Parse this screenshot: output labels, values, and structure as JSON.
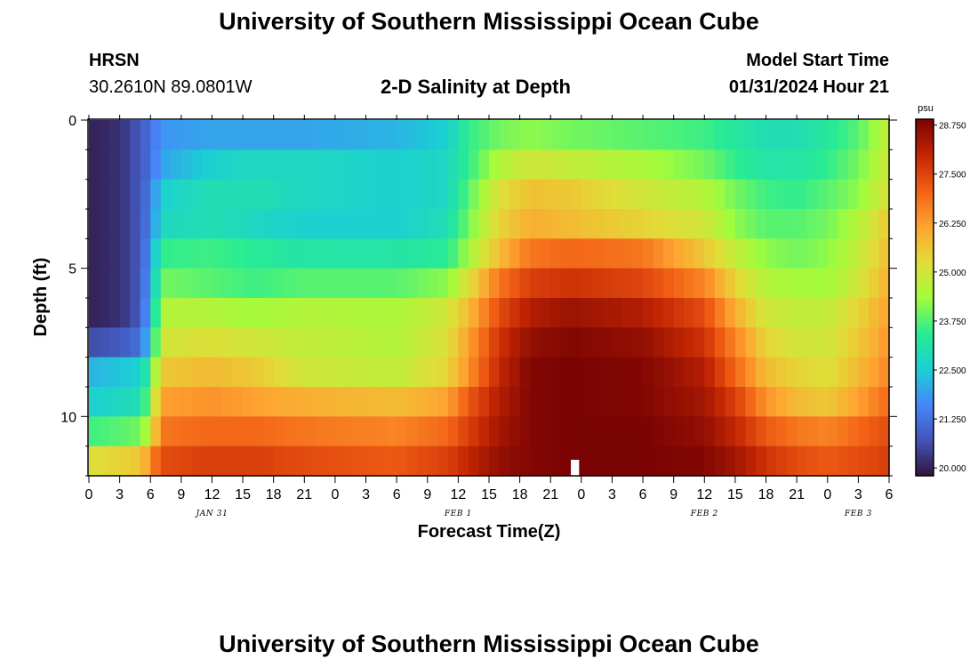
{
  "header": {
    "title": "University of Southern Mississippi Ocean Cube",
    "station": "HRSN",
    "coords": "30.2610N  89.0801W",
    "plot_title": "2-D Salinity at Depth",
    "model_start_label": "Model Start Time",
    "model_start_value": "01/31/2024 Hour 21",
    "footer_title": "University of Southern Mississippi Ocean Cube"
  },
  "chart_data": {
    "type": "heatmap",
    "title": "2-D Salinity at Depth",
    "xlabel": "Forecast Time(Z)",
    "ylabel": "Depth (ft)",
    "x_range_hours": [
      0,
      78
    ],
    "y_range_ft": [
      0,
      12
    ],
    "x_tick_labels": [
      "0",
      "3",
      "6",
      "9",
      "12",
      "15",
      "18",
      "21",
      "0",
      "3",
      "6",
      "9",
      "12",
      "15",
      "18",
      "21",
      "0",
      "3",
      "6",
      "9",
      "12",
      "15",
      "18",
      "21",
      "0",
      "3",
      "6"
    ],
    "x_tick_hours": [
      0,
      3,
      6,
      9,
      12,
      15,
      18,
      21,
      24,
      27,
      30,
      33,
      36,
      39,
      42,
      45,
      48,
      51,
      54,
      57,
      60,
      63,
      66,
      69,
      72,
      75,
      78
    ],
    "date_labels": [
      {
        "label": "JAN 31",
        "hour": 12
      },
      {
        "label": "FEB 1",
        "hour": 36
      },
      {
        "label": "FEB 2",
        "hour": 60
      },
      {
        "label": "FEB 3",
        "hour": 75
      }
    ],
    "y_tick_labels": [
      "0",
      "5",
      "10"
    ],
    "y_tick_values": [
      0,
      5,
      10
    ],
    "depth_levels_ft": [
      0.5,
      1.5,
      2.5,
      3.5,
      4.5,
      5.5,
      6.5,
      7.5,
      8.5,
      9.5,
      10.5,
      11.5
    ],
    "model_start_marker_hour": 47,
    "colorbar": {
      "unit": "psu",
      "min": 19.8,
      "max": 28.9,
      "tick_labels": [
        "28.750",
        "27.500",
        "26.250",
        "25.000",
        "23.750",
        "22.500",
        "21.250",
        "20.000"
      ],
      "tick_values": [
        28.75,
        27.5,
        26.25,
        25.0,
        23.75,
        22.5,
        21.25,
        20.0
      ]
    },
    "salinity_psu_key_times": {
      "hours": [
        0,
        3,
        5,
        6,
        7,
        12,
        16,
        21,
        30,
        35,
        37,
        40,
        43,
        47,
        54,
        60,
        63,
        66,
        69,
        72,
        75,
        78
      ],
      "rows": [
        [
          20.0,
          20.2,
          20.8,
          21.2,
          21.8,
          22.0,
          22.0,
          22.0,
          22.2,
          22.6,
          23.5,
          24.0,
          24.2,
          24.0,
          23.8,
          23.6,
          23.3,
          23.0,
          23.0,
          23.3,
          23.8,
          24.8
        ],
        [
          20.0,
          20.2,
          20.8,
          21.2,
          22.0,
          22.6,
          22.8,
          22.8,
          22.6,
          22.8,
          23.5,
          24.6,
          25.0,
          24.8,
          24.5,
          24.0,
          23.5,
          23.2,
          23.2,
          23.5,
          24.0,
          25.0
        ],
        [
          20.0,
          20.2,
          20.8,
          21.4,
          22.6,
          23.0,
          23.0,
          22.8,
          22.6,
          22.8,
          23.8,
          25.2,
          25.7,
          25.6,
          25.0,
          24.6,
          24.0,
          23.6,
          23.5,
          23.8,
          24.2,
          25.2
        ],
        [
          20.0,
          20.2,
          20.8,
          21.5,
          22.8,
          23.0,
          22.8,
          22.6,
          22.6,
          23.0,
          24.0,
          25.4,
          26.0,
          25.8,
          25.4,
          25.0,
          24.2,
          23.8,
          23.8,
          24.0,
          24.6,
          25.6
        ],
        [
          20.0,
          20.2,
          20.8,
          21.8,
          23.5,
          23.6,
          23.4,
          23.2,
          23.2,
          23.4,
          24.4,
          25.8,
          26.8,
          27.0,
          26.8,
          25.6,
          24.8,
          24.2,
          24.0,
          24.2,
          24.8,
          25.8
        ],
        [
          20.0,
          20.2,
          20.8,
          22.0,
          24.0,
          23.8,
          23.6,
          23.8,
          23.8,
          24.2,
          25.2,
          26.8,
          27.6,
          27.8,
          27.5,
          26.6,
          25.4,
          24.6,
          24.4,
          24.4,
          25.0,
          26.0
        ],
        [
          20.0,
          20.2,
          20.8,
          22.2,
          24.6,
          24.6,
          24.4,
          24.6,
          24.5,
          25.0,
          25.8,
          27.4,
          28.2,
          28.5,
          28.2,
          27.4,
          26.0,
          25.0,
          24.8,
          24.8,
          25.4,
          26.2
        ],
        [
          20.6,
          20.8,
          21.2,
          22.6,
          25.0,
          25.2,
          25.0,
          24.8,
          24.6,
          25.2,
          26.2,
          27.8,
          28.6,
          28.8,
          28.6,
          27.8,
          26.6,
          25.4,
          25.0,
          25.0,
          25.6,
          26.4
        ],
        [
          22.2,
          22.4,
          22.6,
          23.6,
          25.6,
          25.8,
          25.6,
          25.0,
          24.8,
          25.4,
          26.4,
          28.0,
          28.8,
          28.9,
          28.8,
          28.2,
          27.0,
          25.8,
          25.4,
          25.2,
          25.8,
          26.6
        ],
        [
          22.6,
          22.8,
          23.0,
          24.2,
          26.2,
          26.4,
          26.2,
          26.0,
          25.8,
          26.2,
          27.2,
          28.2,
          28.8,
          28.9,
          28.8,
          28.4,
          27.6,
          26.4,
          25.8,
          25.6,
          26.2,
          27.0
        ],
        [
          23.6,
          23.8,
          24.0,
          24.8,
          26.8,
          27.0,
          27.0,
          26.8,
          26.6,
          27.0,
          27.6,
          28.4,
          28.8,
          28.9,
          28.9,
          28.6,
          28.0,
          27.2,
          26.8,
          26.6,
          27.0,
          27.4
        ],
        [
          25.2,
          25.4,
          25.6,
          26.4,
          27.4,
          27.6,
          27.6,
          27.4,
          27.2,
          27.6,
          28.0,
          28.6,
          28.8,
          28.9,
          28.9,
          28.8,
          28.4,
          27.8,
          27.4,
          27.2,
          27.4,
          27.6
        ]
      ]
    }
  }
}
